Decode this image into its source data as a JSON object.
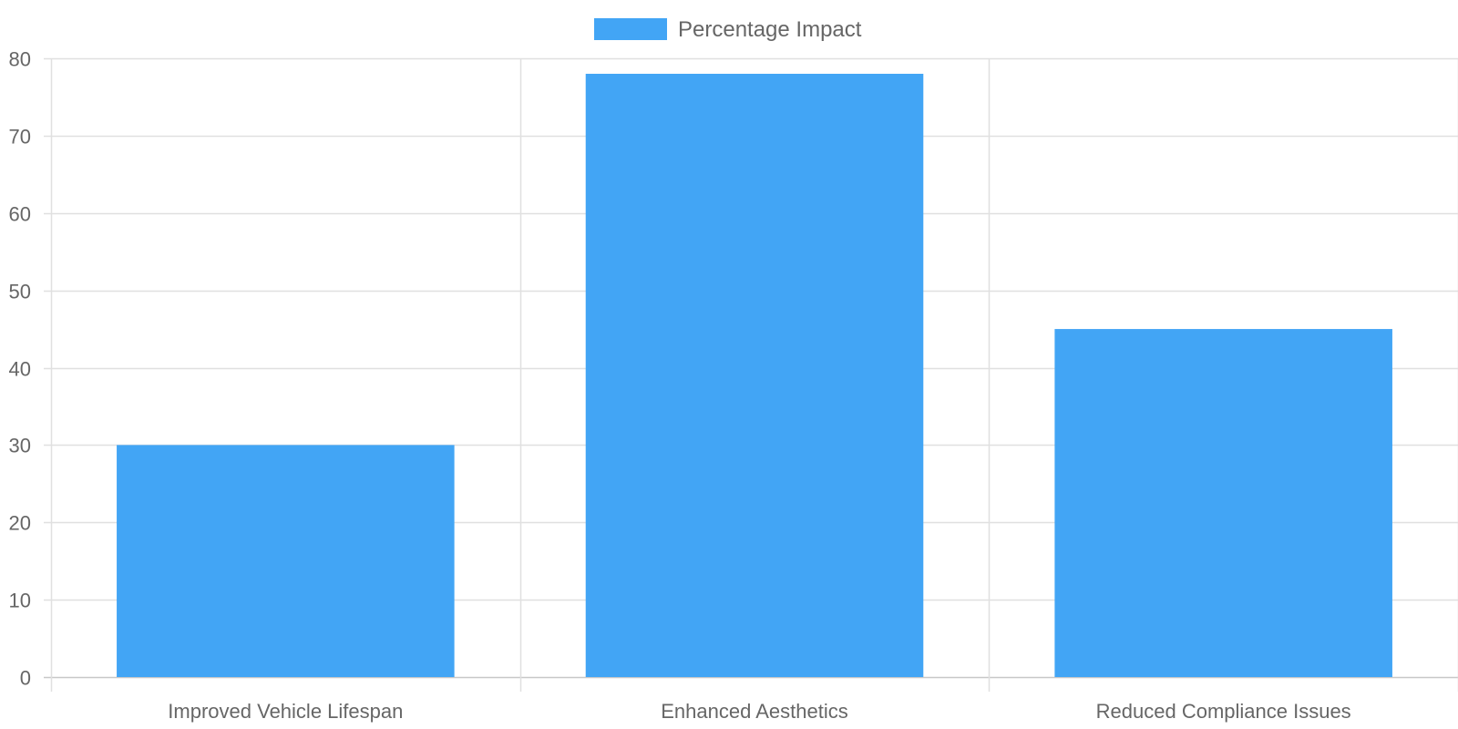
{
  "chart_data": {
    "type": "bar",
    "categories": [
      "Improved Vehicle Lifespan",
      "Enhanced Aesthetics",
      "Reduced Compliance Issues"
    ],
    "series": [
      {
        "name": "Percentage Impact",
        "values": [
          30,
          78,
          45
        ],
        "color": "#42A5F5"
      }
    ],
    "ylim": [
      0,
      80
    ],
    "yticks": [
      0,
      10,
      20,
      30,
      40,
      50,
      60,
      70,
      80
    ],
    "grid": true,
    "legend_position": "top-center"
  },
  "colors": {
    "bar": "#42A5F5",
    "grid": "#e0e0e0",
    "text": "#666666"
  }
}
